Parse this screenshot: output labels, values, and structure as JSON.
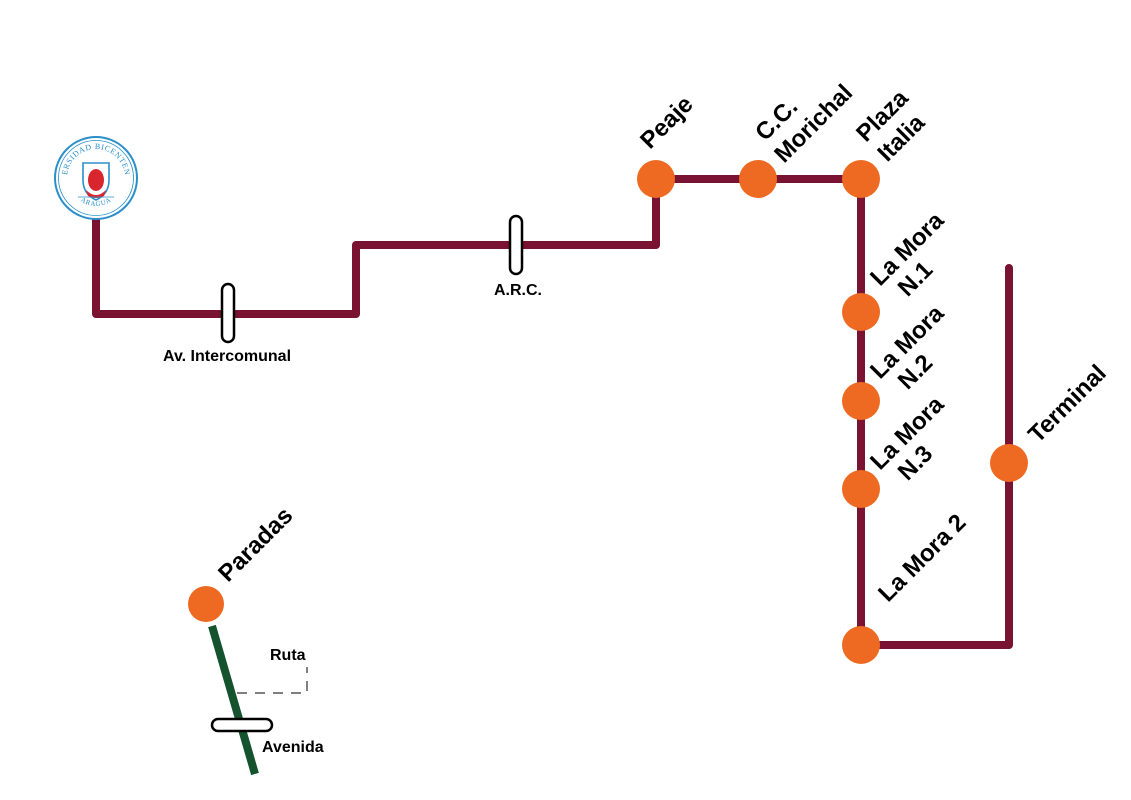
{
  "colors": {
    "route": "#7a1232",
    "station": "#ee6a22",
    "legend_line": "#14532d",
    "logo_blue": "#2a8fc9",
    "logo_red": "#d9262e"
  },
  "logo": {
    "icon": "university-seal-icon",
    "top_text": "UNIVERSIDAD BICENTENARIA",
    "bottom_text": "ARAGUA"
  },
  "stations": [
    {
      "id": "peaje",
      "lines": [
        "Peaje"
      ]
    },
    {
      "id": "cc-morichal",
      "lines": [
        "C.C.",
        "Morichal"
      ]
    },
    {
      "id": "plaza-italia",
      "lines": [
        "Plaza",
        "Italia"
      ]
    },
    {
      "id": "la-mora-n1",
      "lines": [
        "La Mora",
        "N.1"
      ]
    },
    {
      "id": "la-mora-n2",
      "lines": [
        "La Mora",
        "N.2"
      ]
    },
    {
      "id": "la-mora-n3",
      "lines": [
        "La Mora",
        "N.3"
      ]
    },
    {
      "id": "la-mora-2",
      "lines": [
        "La Mora 2"
      ]
    },
    {
      "id": "terminal",
      "lines": [
        "Terminal"
      ]
    }
  ],
  "avenues": [
    {
      "id": "av-intercomunal",
      "label": "Av. Intercomunal"
    },
    {
      "id": "arc",
      "label": "A.R.C."
    }
  ],
  "legend": {
    "stops_label": "Paradas",
    "route_label": "Ruta",
    "avenue_label": "Avenida"
  }
}
